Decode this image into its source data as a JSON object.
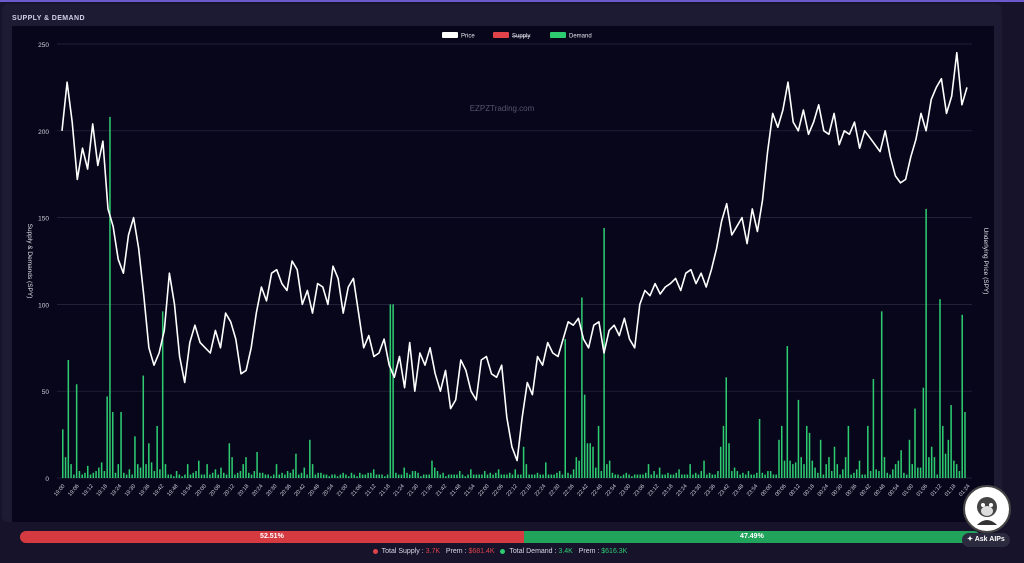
{
  "panel": {
    "title": "SUPPLY & DEMAND"
  },
  "watermark": "EZPZTrading.com",
  "colors": {
    "price": "#ffffff",
    "supply": "#e0434a",
    "demand": "#2ecc71"
  },
  "chart_data": {
    "type": "line+bar",
    "legend": [
      "Price",
      "Supply",
      "Demand"
    ],
    "legend_supply_struck": true,
    "ylabel_left": "Supply & Demands (SPY)",
    "ylabel_right": "Underlying Price (SPY)",
    "ylim": [
      0,
      250
    ],
    "yticks": [
      0,
      50,
      100,
      150,
      200,
      250
    ],
    "xticks": [
      "19:00",
      "19:06",
      "19:12",
      "19:18",
      "19:24",
      "19:30",
      "19:36",
      "19:42",
      "19:48",
      "19:54",
      "20:00",
      "20:06",
      "20:12",
      "20:18",
      "20:24",
      "20:30",
      "20:36",
      "20:42",
      "20:48",
      "20:54",
      "21:00",
      "21:06",
      "21:12",
      "21:18",
      "21:24",
      "21:30",
      "21:36",
      "21:42",
      "21:48",
      "21:54",
      "22:00",
      "22:06",
      "22:12",
      "22:18",
      "22:24",
      "22:30",
      "22:36",
      "22:42",
      "22:48",
      "22:54",
      "23:00",
      "23:06",
      "23:12",
      "23:18",
      "23:24",
      "23:30",
      "23:36",
      "23:42",
      "23:48",
      "23:54",
      "00:00",
      "00:06",
      "00:12",
      "00:18",
      "00:24",
      "00:30",
      "00:36",
      "00:42",
      "00:48",
      "00:54",
      "01:00",
      "01:06",
      "01:12",
      "01:18",
      "01:24"
    ],
    "price": [
      200,
      228,
      205,
      172,
      190,
      178,
      204,
      180,
      194,
      155,
      145,
      126,
      118,
      140,
      150,
      132,
      105,
      75,
      65,
      72,
      85,
      118,
      100,
      70,
      55,
      78,
      88,
      78,
      75,
      72,
      85,
      75,
      95,
      90,
      80,
      60,
      62,
      75,
      95,
      110,
      102,
      118,
      120,
      112,
      108,
      125,
      120,
      100,
      108,
      95,
      112,
      110,
      100,
      122,
      115,
      95,
      110,
      115,
      95,
      75,
      82,
      70,
      72,
      80,
      65,
      58,
      70,
      52,
      78,
      50,
      72,
      65,
      75,
      60,
      50,
      62,
      40,
      45,
      68,
      62,
      50,
      45,
      68,
      70,
      60,
      58,
      65,
      35,
      18,
      10,
      35,
      55,
      48,
      70,
      65,
      78,
      72,
      70,
      80,
      90,
      88,
      92,
      80,
      75,
      88,
      90,
      72,
      85,
      88,
      82,
      92,
      80,
      75,
      100,
      108,
      105,
      112,
      106,
      110,
      112,
      115,
      108,
      118,
      120,
      112,
      118,
      110,
      120,
      132,
      148,
      158,
      140,
      145,
      150,
      135,
      155,
      142,
      160,
      188,
      210,
      202,
      212,
      228,
      205,
      200,
      212,
      198,
      205,
      215,
      200,
      198,
      210,
      192,
      200,
      198,
      205,
      190,
      200,
      196,
      192,
      188,
      200,
      185,
      174,
      170,
      172,
      185,
      195,
      210,
      200,
      218,
      225,
      230,
      210,
      220,
      245,
      215,
      225
    ],
    "demand": [
      28,
      12,
      68,
      8,
      2,
      54,
      4,
      2,
      3,
      7,
      2,
      3,
      4,
      6,
      9,
      4,
      47,
      208,
      38,
      3,
      8,
      38,
      3,
      2,
      5,
      2,
      24,
      8,
      6,
      59,
      8,
      20,
      9,
      4,
      30,
      5,
      96,
      8,
      2,
      2,
      1,
      4,
      2,
      1,
      2,
      8,
      2,
      3,
      4,
      10,
      2,
      2,
      8,
      2,
      3,
      5,
      2,
      6,
      3,
      2,
      20,
      12,
      2,
      3,
      4,
      8,
      12,
      3,
      2,
      4,
      15,
      3,
      3,
      2,
      2,
      1,
      2,
      8,
      2,
      3,
      2,
      4,
      3,
      5,
      14,
      2,
      3,
      6,
      2,
      22,
      8,
      2,
      3,
      3,
      2,
      2,
      1,
      2,
      2,
      1,
      2,
      3,
      2,
      1,
      3,
      2,
      1,
      3,
      2,
      2,
      3,
      3,
      5,
      2,
      2,
      2,
      1,
      2,
      100,
      100,
      3,
      2,
      2,
      6,
      3,
      2,
      4,
      4,
      3,
      1,
      2,
      2,
      2,
      10,
      6,
      4,
      2,
      3,
      1,
      2,
      2,
      2,
      2,
      4,
      2,
      1,
      2,
      5,
      2,
      2,
      2,
      2,
      4,
      2,
      3,
      2,
      3,
      5,
      2,
      2,
      2,
      3,
      2,
      5,
      2,
      2,
      18,
      8,
      2,
      2,
      2,
      3,
      2,
      2,
      9,
      2,
      2,
      2,
      3,
      4,
      2,
      80,
      3,
      2,
      5,
      12,
      10,
      104,
      48,
      20,
      20,
      18,
      6,
      30,
      4,
      144,
      8,
      10,
      3,
      2,
      2,
      1,
      2,
      3,
      2,
      1,
      2,
      2,
      2,
      2,
      3,
      8,
      2,
      4,
      2,
      6,
      2,
      2,
      3,
      2,
      2,
      3,
      5,
      2,
      2,
      2,
      8,
      2,
      3,
      2,
      4,
      10,
      2,
      3,
      2,
      2,
      4,
      18,
      30,
      58,
      20,
      4,
      6,
      4,
      2,
      3,
      2,
      4,
      2,
      2,
      3,
      34,
      3,
      2,
      4,
      4,
      2,
      2,
      22,
      30,
      10,
      76,
      10,
      8,
      9,
      45,
      12,
      8,
      30,
      26,
      10,
      6,
      3,
      22,
      2,
      8,
      12,
      4,
      18,
      8,
      2,
      5,
      12,
      30,
      2,
      3,
      5,
      10,
      2,
      2,
      30,
      4,
      57,
      5,
      4,
      96,
      12,
      3,
      2,
      5,
      8,
      10,
      16,
      3,
      2,
      22,
      8,
      40,
      6,
      6,
      52,
      155,
      12,
      18,
      12,
      2,
      103,
      30,
      14,
      22,
      42,
      10,
      8,
      4,
      94,
      38
    ]
  },
  "summary": {
    "supply_pct": "52.51%",
    "demand_pct": "47.49%",
    "supply_fraction": 0.5251,
    "total_supply_label": "Total Supply :",
    "total_supply_value": "3.7K",
    "prem_label": "Prem :",
    "supply_prem": "$681.4K",
    "total_demand_label": "Total Demand :",
    "total_demand_value": "3.4K",
    "demand_prem": "$616.3K"
  },
  "ask": {
    "label": "Ask AIPs"
  }
}
